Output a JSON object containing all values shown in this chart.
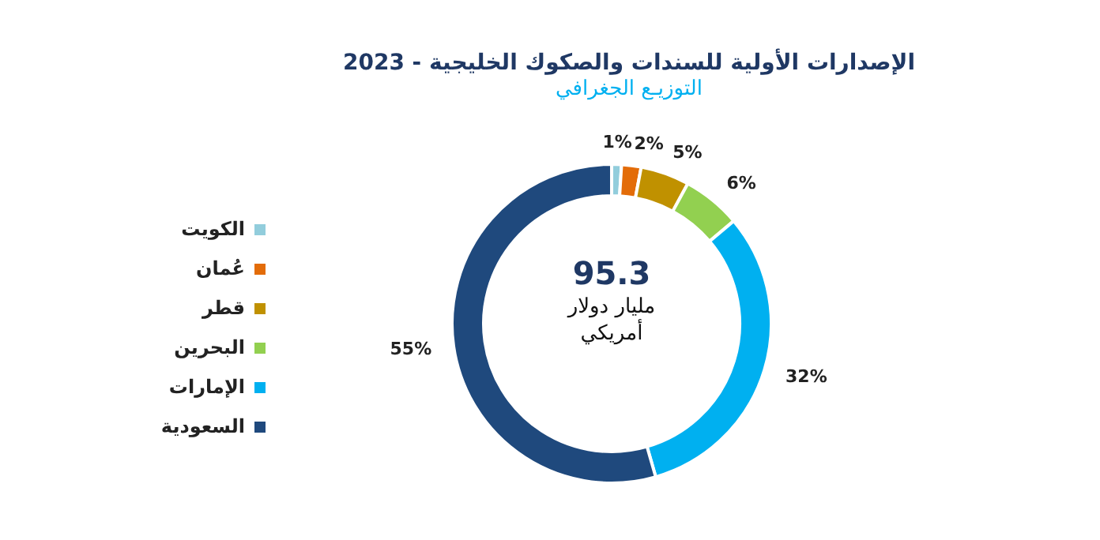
{
  "chart_data": {
    "type": "donut",
    "title": "الإصدارات الأولية للسندات والصكوك الخليجية - 2023",
    "subtitle": "التوزيـع الجغرافي",
    "categories": [
      "الكويت",
      "عُمان",
      "قطر",
      "البحرين",
      "الإمارات",
      "السعودية"
    ],
    "values": [
      1,
      2,
      5,
      6,
      32,
      55
    ],
    "value_labels": [
      "1%",
      "2%",
      "5%",
      "6%",
      "32%",
      "55%"
    ],
    "colors": [
      "#92cddc",
      "#e36c09",
      "#c09100",
      "#92d050",
      "#00b0f0",
      "#1f497d"
    ],
    "legend": "left",
    "annotations": [
      "95.3",
      "مليار دولار أمريكي"
    ]
  }
}
